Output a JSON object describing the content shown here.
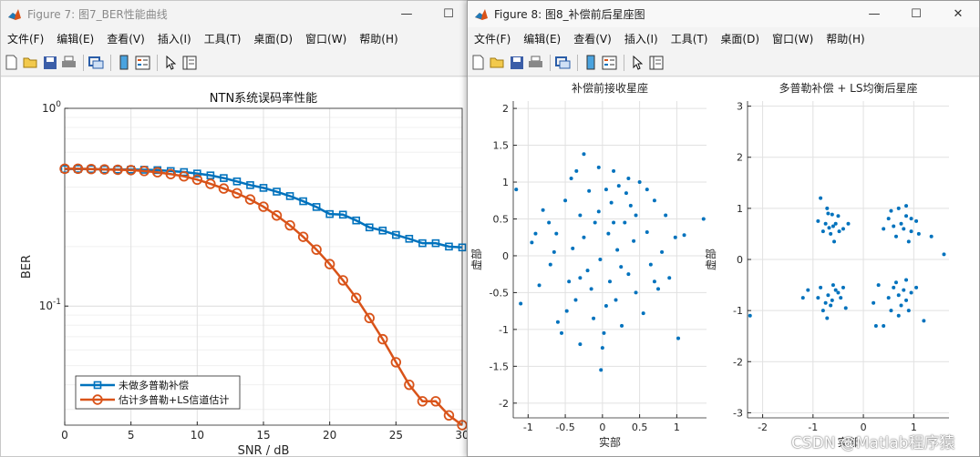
{
  "figure7": {
    "title": "Figure 7: 图7_BER性能曲线",
    "chart_title": "NTN系统误码率性能",
    "menus": [
      "文件(F)",
      "编辑(E)",
      "查看(V)",
      "插入(I)",
      "工具(T)",
      "桌面(D)",
      "窗口(W)",
      "帮助(H)"
    ]
  },
  "figure8": {
    "title": "Figure 8: 图8_补偿前后星座图",
    "menus": [
      "文件(F)",
      "编辑(E)",
      "查看(V)",
      "插入(I)",
      "工具(T)",
      "桌面(D)",
      "窗口(W)",
      "帮助(H)"
    ]
  },
  "window_controls": {
    "minimize": "—",
    "maximize": "☐",
    "close": "✕"
  },
  "watermark": "CSDN @Matlab程序猿",
  "colors": {
    "series1": "#0072BD",
    "series2": "#D95319",
    "scatter": "#0072BD",
    "grid": "#e1e1e1"
  },
  "toolbar_icons": [
    "new-file-icon",
    "open-folder-icon",
    "save-icon",
    "print-icon",
    "link-icon",
    "colorbar-icon",
    "legend-icon",
    "pointer-icon",
    "property-icon"
  ],
  "chart_data": [
    {
      "type": "line",
      "title": "NTN系统误码率性能",
      "xlabel": "SNR / dB",
      "ylabel": "BER",
      "yscale": "log",
      "xlim": [
        0,
        30
      ],
      "ylim": [
        0.025,
        1
      ],
      "xticks": [
        "0",
        "5",
        "10",
        "15",
        "20",
        "25",
        "30"
      ],
      "yticks": [
        "10^0",
        "10^-1"
      ],
      "grid": true,
      "legend_position": "bottom-left",
      "x": [
        0,
        1,
        2,
        3,
        4,
        5,
        6,
        7,
        8,
        9,
        10,
        11,
        12,
        13,
        14,
        15,
        16,
        17,
        18,
        19,
        20,
        21,
        22,
        23,
        24,
        25,
        26,
        27,
        28,
        29,
        30
      ],
      "series": [
        {
          "name": "未做多普勒补偿",
          "marker": "square",
          "values": [
            0.493,
            0.494,
            0.493,
            0.491,
            0.49,
            0.49,
            0.489,
            0.487,
            0.482,
            0.476,
            0.468,
            0.458,
            0.444,
            0.427,
            0.409,
            0.396,
            0.379,
            0.36,
            0.339,
            0.317,
            0.292,
            0.29,
            0.271,
            0.25,
            0.241,
            0.229,
            0.219,
            0.208,
            0.208,
            0.2,
            0.198
          ]
        },
        {
          "name": "估计多普勒+LS信道估计",
          "marker": "circle",
          "values": [
            0.495,
            0.495,
            0.493,
            0.491,
            0.489,
            0.487,
            0.482,
            0.475,
            0.465,
            0.453,
            0.436,
            0.415,
            0.393,
            0.372,
            0.346,
            0.318,
            0.287,
            0.256,
            0.224,
            0.193,
            0.163,
            0.135,
            0.11,
            0.087,
            0.068,
            0.052,
            0.04,
            0.033,
            0.033,
            0.028,
            0.025
          ]
        }
      ]
    },
    {
      "type": "scatter",
      "title": "补偿前接收星座",
      "xlabel": "实部",
      "ylabel": "虚部",
      "xlim": [
        -1.2,
        1.4
      ],
      "ylim": [
        -2.2,
        2.1
      ],
      "xticks": [
        "-1",
        "-0.5",
        "0",
        "0.5",
        "1"
      ],
      "yticks": [
        "2",
        "1.5",
        "1",
        "0.5",
        "0",
        "-0.5",
        "-1",
        "-1.5",
        "-2"
      ],
      "grid": true,
      "points": [
        [
          -1.16,
          0.9
        ],
        [
          -0.95,
          0.18
        ],
        [
          -1.1,
          -0.65
        ],
        [
          -0.8,
          0.62
        ],
        [
          -0.72,
          0.45
        ],
        [
          -0.7,
          -0.12
        ],
        [
          -0.62,
          0.3
        ],
        [
          -0.6,
          -0.9
        ],
        [
          -0.5,
          0.75
        ],
        [
          -0.45,
          -0.35
        ],
        [
          -0.42,
          1.05
        ],
        [
          -0.4,
          0.1
        ],
        [
          -0.36,
          -0.6
        ],
        [
          -0.3,
          0.55
        ],
        [
          -0.3,
          -1.2
        ],
        [
          -0.25,
          0.25
        ],
        [
          -0.2,
          -0.2
        ],
        [
          -0.18,
          0.88
        ],
        [
          -0.12,
          -0.85
        ],
        [
          -0.1,
          0.45
        ],
        [
          -0.05,
          0.6
        ],
        [
          -0.03,
          -0.05
        ],
        [
          0.02,
          -1.05
        ],
        [
          0.05,
          0.9
        ],
        [
          0.08,
          0.3
        ],
        [
          0.1,
          -0.35
        ],
        [
          0.12,
          0.72
        ],
        [
          0.15,
          1.15
        ],
        [
          0.18,
          -0.6
        ],
        [
          0.2,
          0.08
        ],
        [
          0.22,
          0.95
        ],
        [
          0.26,
          -0.95
        ],
        [
          0.3,
          0.45
        ],
        [
          0.32,
          0.85
        ],
        [
          0.35,
          -0.25
        ],
        [
          0.38,
          0.68
        ],
        [
          0.42,
          0.2
        ],
        [
          0.45,
          -0.5
        ],
        [
          0.5,
          1.0
        ],
        [
          0.55,
          -0.78
        ],
        [
          0.6,
          0.32
        ],
        [
          0.65,
          -0.12
        ],
        [
          0.7,
          0.75
        ],
        [
          0.75,
          -0.45
        ],
        [
          0.8,
          0.05
        ],
        [
          0.85,
          0.55
        ],
        [
          0.9,
          -0.3
        ],
        [
          0.98,
          0.25
        ],
        [
          1.02,
          -1.12
        ],
        [
          1.1,
          0.28
        ],
        [
          1.36,
          0.5
        ],
        [
          -0.02,
          -1.55
        ],
        [
          0.0,
          -1.25
        ],
        [
          -0.25,
          1.38
        ],
        [
          -0.35,
          1.15
        ],
        [
          -0.55,
          -1.05
        ],
        [
          -0.85,
          -0.4
        ],
        [
          -0.9,
          0.3
        ],
        [
          -0.65,
          0.05
        ],
        [
          -0.15,
          -0.45
        ],
        [
          0.25,
          -0.15
        ],
        [
          0.45,
          0.55
        ],
        [
          0.7,
          -0.35
        ],
        [
          0.15,
          0.45
        ],
        [
          -0.48,
          -0.75
        ],
        [
          0.35,
          1.05
        ],
        [
          -0.05,
          1.2
        ],
        [
          0.6,
          0.9
        ],
        [
          0.05,
          -0.68
        ],
        [
          -0.3,
          -0.3
        ]
      ]
    },
    {
      "type": "scatter",
      "title": "多普勒补偿 + LS均衡后星座",
      "xlabel": "实部",
      "ylabel": "虚部",
      "xlim": [
        -2.3,
        1.7
      ],
      "ylim": [
        -3.1,
        3.1
      ],
      "xticks": [
        "-2",
        "-1",
        "0",
        "1"
      ],
      "yticks": [
        "3",
        "2",
        "1",
        "0",
        "-1",
        "-2",
        "-3"
      ],
      "grid": true,
      "points": [
        [
          -0.85,
          1.2
        ],
        [
          -0.7,
          0.9
        ],
        [
          -0.6,
          0.65
        ],
        [
          -0.75,
          0.7
        ],
        [
          -0.5,
          0.85
        ],
        [
          -0.65,
          0.5
        ],
        [
          -0.8,
          0.55
        ],
        [
          -0.55,
          0.7
        ],
        [
          -0.4,
          0.6
        ],
        [
          -0.9,
          0.75
        ],
        [
          -0.62,
          0.88
        ],
        [
          -0.48,
          0.55
        ],
        [
          -0.72,
          1.0
        ],
        [
          -0.58,
          0.35
        ],
        [
          -0.3,
          0.7
        ],
        [
          -0.68,
          0.62
        ],
        [
          0.7,
          1.0
        ],
        [
          0.85,
          0.85
        ],
        [
          0.6,
          0.65
        ],
        [
          0.95,
          0.55
        ],
        [
          0.75,
          0.7
        ],
        [
          0.5,
          0.8
        ],
        [
          0.9,
          0.35
        ],
        [
          1.05,
          0.75
        ],
        [
          0.65,
          0.45
        ],
        [
          0.8,
          0.6
        ],
        [
          1.1,
          0.5
        ],
        [
          0.55,
          0.95
        ],
        [
          0.85,
          1.05
        ],
        [
          0.4,
          0.6
        ],
        [
          0.95,
          0.8
        ],
        [
          1.35,
          0.45
        ],
        [
          1.6,
          0.1
        ],
        [
          -0.85,
          -0.55
        ],
        [
          -0.7,
          -0.7
        ],
        [
          -0.6,
          -0.5
        ],
        [
          -0.75,
          -0.85
        ],
        [
          -0.5,
          -0.65
        ],
        [
          -0.65,
          -0.9
        ],
        [
          -0.9,
          -0.75
        ],
        [
          -0.55,
          -0.6
        ],
        [
          -0.4,
          -0.55
        ],
        [
          -0.8,
          -1.0
        ],
        [
          -0.62,
          -0.8
        ],
        [
          -1.1,
          -0.6
        ],
        [
          -0.72,
          -1.15
        ],
        [
          -0.45,
          -0.75
        ],
        [
          -0.35,
          -0.95
        ],
        [
          -1.2,
          -0.75
        ],
        [
          -2.25,
          -1.1
        ],
        [
          0.7,
          -0.7
        ],
        [
          0.85,
          -0.8
        ],
        [
          0.6,
          -0.55
        ],
        [
          0.95,
          -0.65
        ],
        [
          0.75,
          -0.9
        ],
        [
          0.5,
          -0.75
        ],
        [
          0.9,
          -1.0
        ],
        [
          0.65,
          -0.45
        ],
        [
          1.05,
          -0.55
        ],
        [
          0.8,
          -0.6
        ],
        [
          0.55,
          -1.0
        ],
        [
          0.4,
          -1.3
        ],
        [
          0.3,
          -0.5
        ],
        [
          1.2,
          -1.2
        ],
        [
          0.2,
          -0.85
        ],
        [
          0.85,
          -0.4
        ],
        [
          0.7,
          -1.1
        ],
        [
          0.25,
          -1.3
        ]
      ]
    }
  ]
}
